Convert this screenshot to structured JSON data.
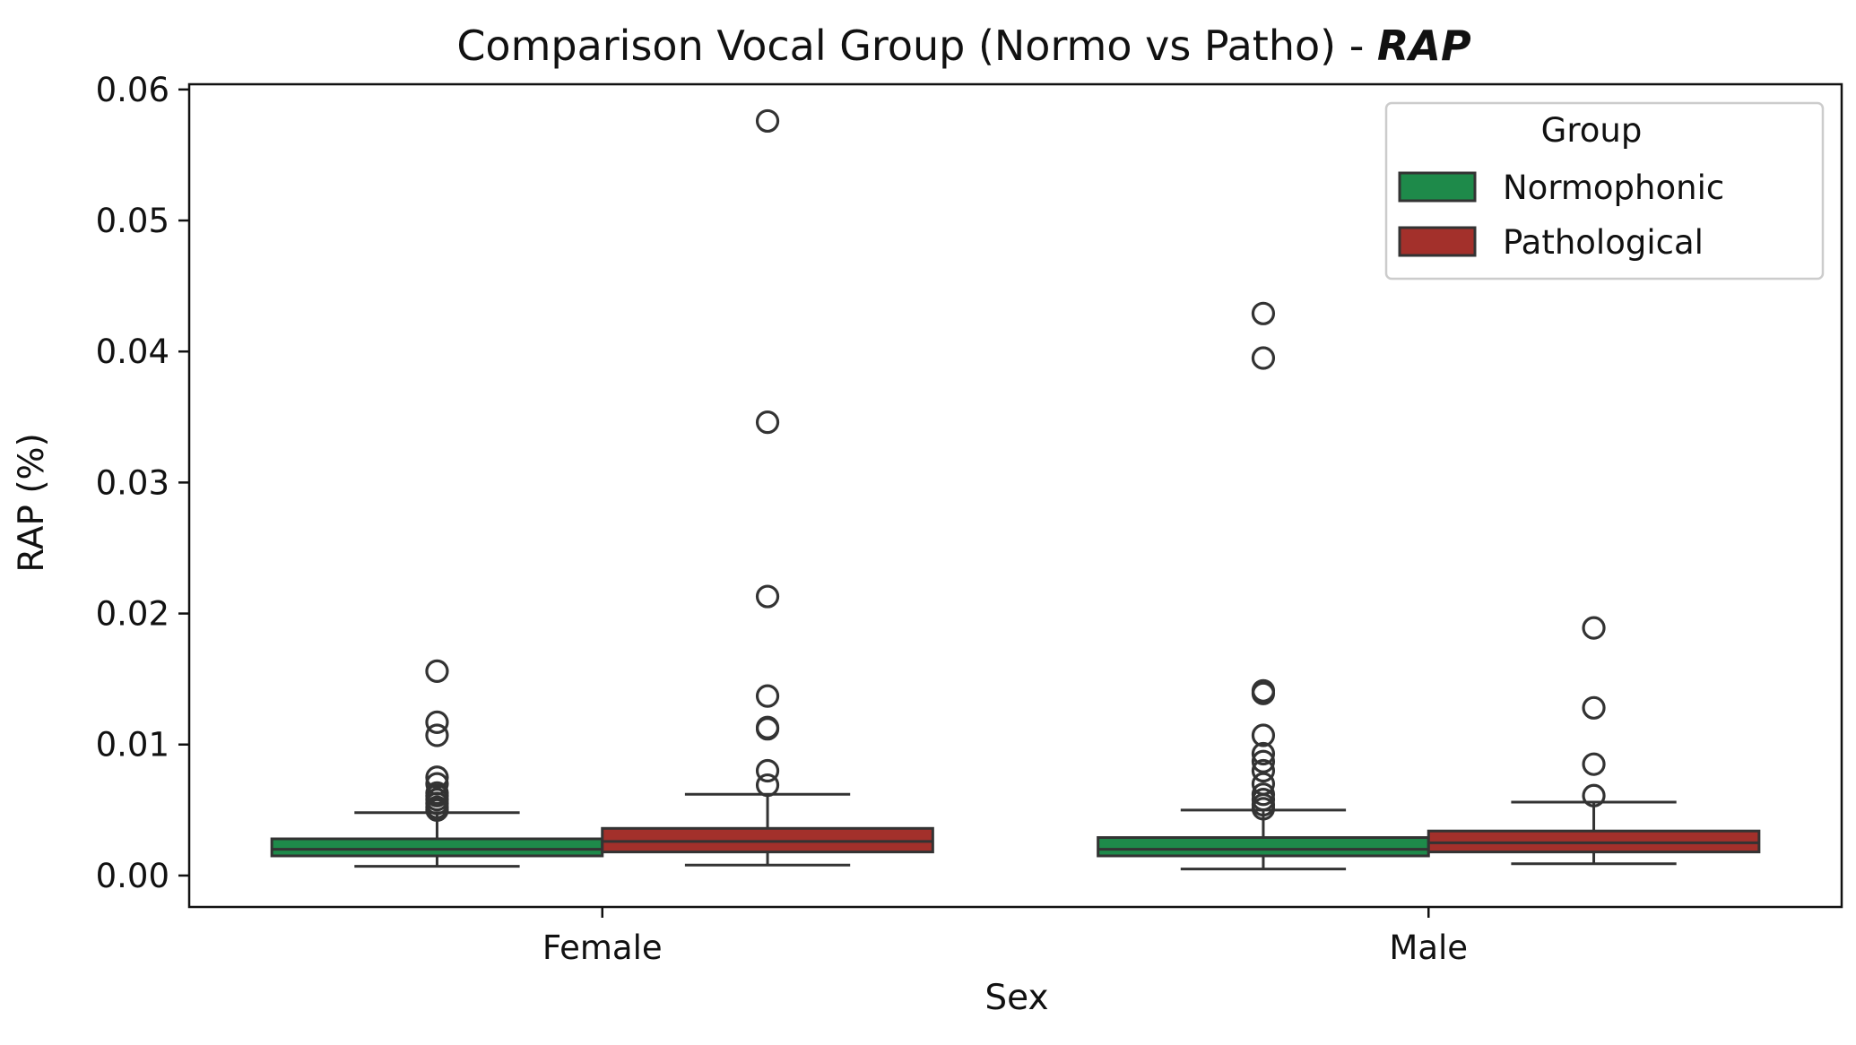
{
  "chart_data": {
    "type": "box",
    "title_prefix": "Comparison Vocal Group (Normo vs Patho)  - ",
    "title_metric": "RAP",
    "xlabel": "Sex",
    "ylabel": "RAP  (%)",
    "categories": [
      "Female",
      "Male"
    ],
    "yticks": [
      "0.00",
      "0.01",
      "0.02",
      "0.03",
      "0.04",
      "0.05",
      "0.06"
    ],
    "ytick_values": [
      0.0,
      0.01,
      0.02,
      0.03,
      0.04,
      0.05,
      0.06
    ],
    "ylim": [
      -0.0024,
      0.0604
    ],
    "grid": false,
    "legend": {
      "title": "Group",
      "placement": "top-right",
      "entries": [
        {
          "name": "Normophonic",
          "color": "#1e8a4a"
        },
        {
          "name": "Pathological",
          "color": "#a3302b"
        }
      ]
    },
    "series": [
      {
        "name": "Normophonic",
        "color": "#1e8a4a",
        "boxes": [
          {
            "category": "Female",
            "whisker_low": 0.0007,
            "q1": 0.0015,
            "median": 0.002,
            "q3": 0.0028,
            "whisker_high": 0.0048,
            "outliers": [
              0.005,
              0.0052,
              0.0055,
              0.0058,
              0.0061,
              0.0063,
              0.007,
              0.0075,
              0.0107,
              0.0117,
              0.0156
            ]
          },
          {
            "category": "Male",
            "whisker_low": 0.0005,
            "q1": 0.0015,
            "median": 0.002,
            "q3": 0.0029,
            "whisker_high": 0.005,
            "outliers": [
              0.0051,
              0.0054,
              0.0058,
              0.0062,
              0.007,
              0.008,
              0.0087,
              0.0093,
              0.0107,
              0.0139,
              0.0141,
              0.0395,
              0.0429
            ]
          }
        ]
      },
      {
        "name": "Pathological",
        "color": "#a3302b",
        "boxes": [
          {
            "category": "Female",
            "whisker_low": 0.0008,
            "q1": 0.0018,
            "median": 0.0026,
            "q3": 0.0036,
            "whisker_high": 0.0062,
            "outliers": [
              0.0069,
              0.008,
              0.0112,
              0.0113,
              0.0137,
              0.0213,
              0.0346,
              0.0576
            ]
          },
          {
            "category": "Male",
            "whisker_low": 0.0009,
            "q1": 0.0018,
            "median": 0.0025,
            "q3": 0.0034,
            "whisker_high": 0.0056,
            "outliers": [
              0.0061,
              0.0085,
              0.0128,
              0.0189
            ]
          }
        ]
      }
    ]
  }
}
